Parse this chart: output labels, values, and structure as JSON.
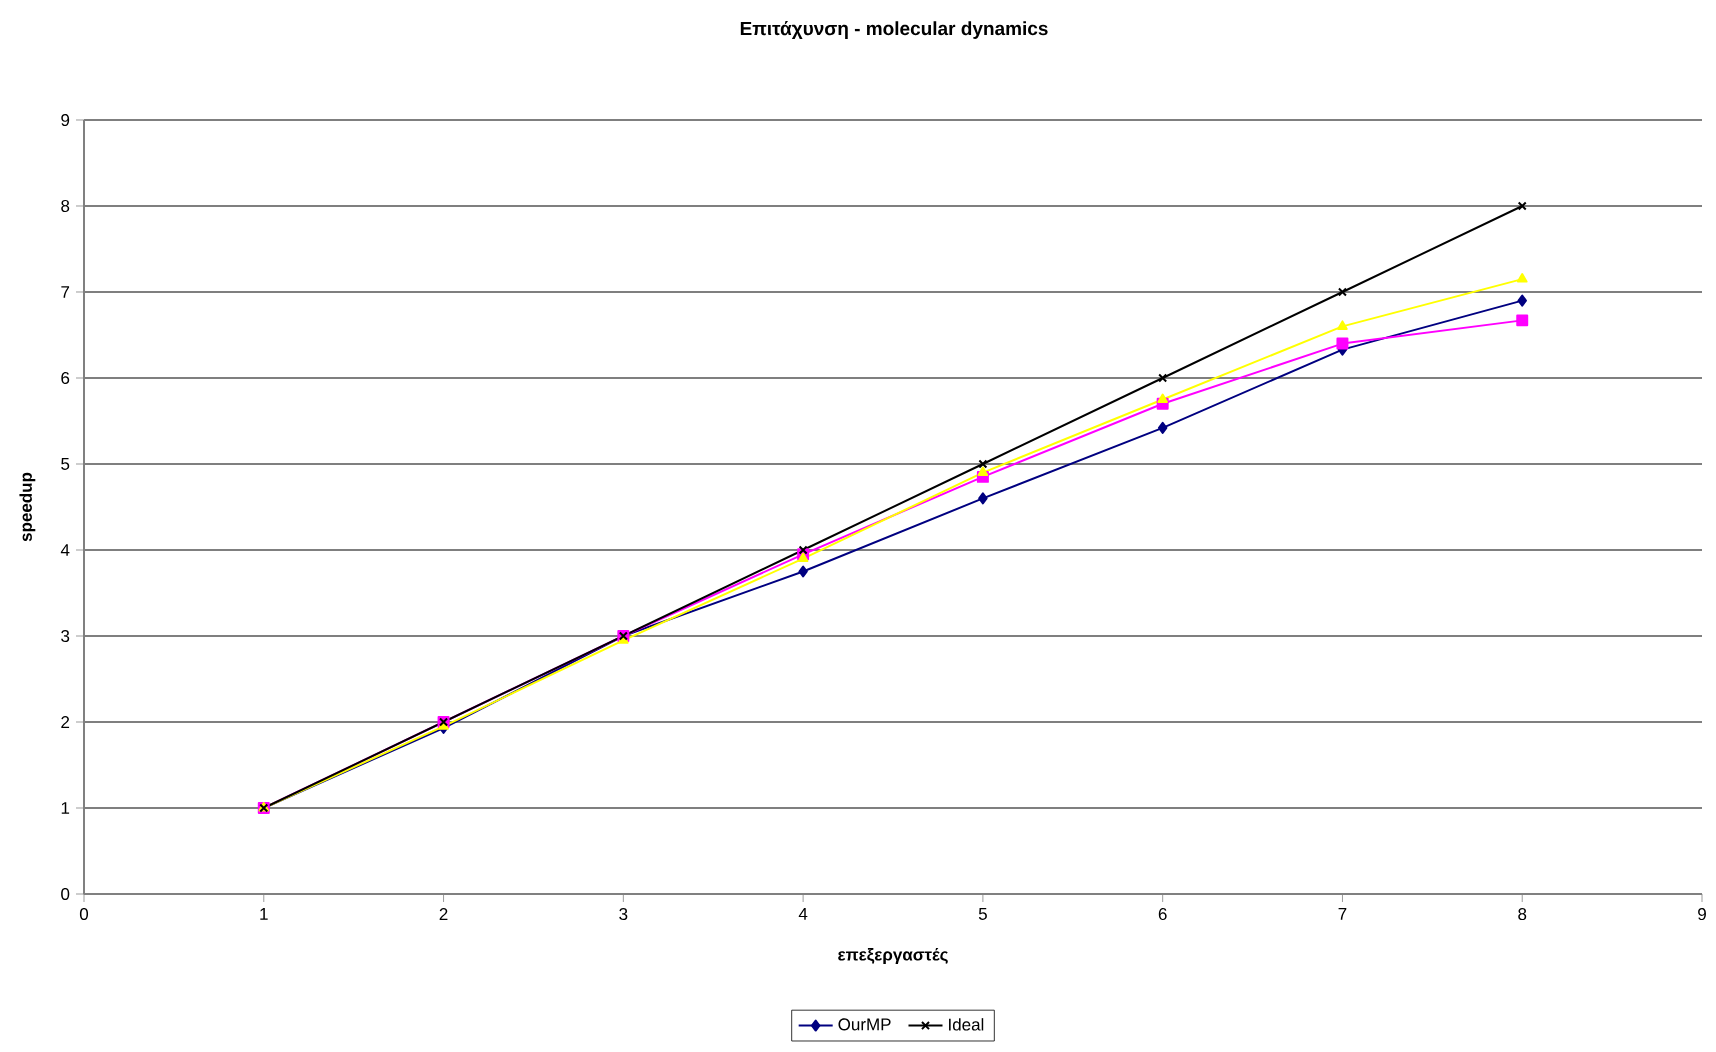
{
  "chart_data": {
    "type": "line",
    "title": "Επιτάχυνση - molecular dynamics",
    "xlabel": "επεξεργαστές",
    "ylabel": "speedup",
    "x": [
      1,
      2,
      3,
      4,
      5,
      6,
      7,
      8
    ],
    "series": [
      {
        "name": "OurMP",
        "color": "#000080",
        "marker": "diamond",
        "values": [
          1,
          1.93,
          3.0,
          3.75,
          4.6,
          5.42,
          6.33,
          6.9
        ]
      },
      {
        "color": "#ff00ff",
        "marker": "square",
        "values": [
          1,
          2.0,
          3.0,
          3.95,
          4.85,
          5.7,
          6.4,
          6.67
        ]
      },
      {
        "color": "#ffff00",
        "marker": "triangle",
        "values": [
          1,
          1.95,
          2.95,
          3.9,
          4.9,
          5.75,
          6.6,
          7.15
        ]
      },
      {
        "name": "Ideal",
        "color": "#000000",
        "marker": "cross",
        "values": [
          1,
          2,
          3,
          4,
          5,
          6,
          7,
          8
        ]
      }
    ],
    "xlim": [
      0,
      9
    ],
    "ylim": [
      0,
      9
    ],
    "xticks": [
      0,
      1,
      2,
      3,
      4,
      5,
      6,
      7,
      8,
      9
    ],
    "yticks": [
      0,
      1,
      2,
      3,
      4,
      5,
      6,
      7,
      8,
      9
    ],
    "grid": "y",
    "legend": "bottom",
    "line_style": "solid"
  }
}
